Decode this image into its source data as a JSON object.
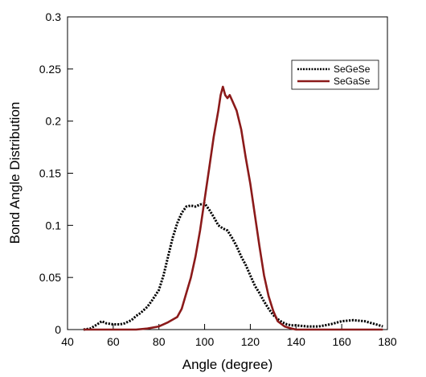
{
  "chart_data": {
    "type": "line",
    "xlabel": "Angle (degree)",
    "ylabel": "Bond Angle Distribution",
    "xlim": [
      40,
      180
    ],
    "ylim": [
      0,
      0.3
    ],
    "xticks": [
      "40",
      "60",
      "80",
      "100",
      "120",
      "140",
      "160",
      "180"
    ],
    "yticks": [
      "0",
      "0.05",
      "0.1",
      "0.15",
      "0.2",
      "0.25",
      "0.3"
    ],
    "grid": false,
    "legend_position": "top-right",
    "series": [
      {
        "name": "SeGeSe",
        "color": "#000000",
        "style": "dotted",
        "x": [
          47,
          50,
          53,
          55,
          57,
          60,
          63,
          65,
          68,
          70,
          72,
          75,
          77,
          80,
          82,
          84,
          86,
          88,
          90,
          92,
          94,
          96,
          98,
          100,
          102,
          104,
          106,
          108,
          110,
          112,
          114,
          116,
          118,
          120,
          122,
          124,
          126,
          128,
          130,
          132,
          134,
          136,
          138,
          140,
          145,
          150,
          155,
          160,
          165,
          170,
          175,
          178
        ],
        "y": [
          0,
          0.001,
          0.005,
          0.008,
          0.006,
          0.005,
          0.005,
          0.006,
          0.009,
          0.013,
          0.016,
          0.022,
          0.028,
          0.038,
          0.052,
          0.07,
          0.088,
          0.102,
          0.112,
          0.118,
          0.119,
          0.118,
          0.12,
          0.121,
          0.115,
          0.108,
          0.1,
          0.097,
          0.095,
          0.088,
          0.08,
          0.07,
          0.062,
          0.052,
          0.042,
          0.035,
          0.027,
          0.02,
          0.014,
          0.01,
          0.007,
          0.005,
          0.004,
          0.004,
          0.003,
          0.003,
          0.005,
          0.008,
          0.009,
          0.008,
          0.005,
          0.003
        ]
      },
      {
        "name": "SeGaSe",
        "color": "#8b1a1a",
        "style": "solid",
        "x": [
          47,
          60,
          70,
          75,
          80,
          84,
          88,
          90,
          92,
          94,
          96,
          98,
          100,
          102,
          104,
          106,
          107,
          108,
          109,
          110,
          111,
          112,
          114,
          116,
          118,
          120,
          122,
          124,
          126,
          128,
          130,
          132,
          135,
          138,
          140,
          145,
          150,
          160,
          170,
          178
        ],
        "y": [
          0,
          0,
          0,
          0.001,
          0.003,
          0.007,
          0.012,
          0.02,
          0.035,
          0.05,
          0.07,
          0.095,
          0.125,
          0.155,
          0.185,
          0.21,
          0.225,
          0.233,
          0.225,
          0.222,
          0.225,
          0.22,
          0.21,
          0.192,
          0.165,
          0.14,
          0.11,
          0.08,
          0.052,
          0.032,
          0.018,
          0.008,
          0.003,
          0.001,
          0,
          0,
          0,
          0,
          0,
          0
        ]
      }
    ]
  }
}
